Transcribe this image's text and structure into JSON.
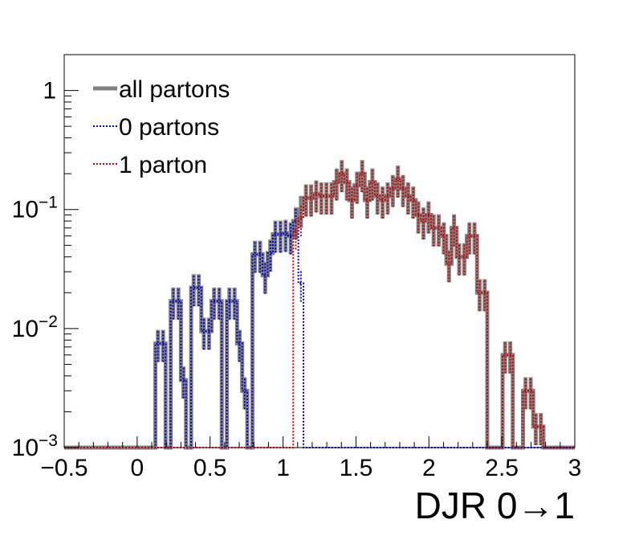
{
  "chart_data": {
    "type": "histogram",
    "xlabel": "DJR 0→1",
    "ylabel": "",
    "title": "",
    "xlim": [
      -0.5,
      3.0
    ],
    "ylim": [
      0.001,
      2.0
    ],
    "yscale": "log",
    "grid": false,
    "legend_position": "top-left",
    "x_ticks": [
      -0.5,
      0,
      0.5,
      1,
      1.5,
      2,
      2.5,
      3
    ],
    "x_tick_labels": [
      "−0.5",
      "0",
      "0.5",
      "1",
      "1.5",
      "2",
      "2.5",
      "3"
    ],
    "y_ticks": [
      {
        "value": 0.001,
        "mantissa": "10",
        "exponent": "−3"
      },
      {
        "value": 0.01,
        "mantissa": "10",
        "exponent": "−2"
      },
      {
        "value": 0.1,
        "mantissa": "10",
        "exponent": "−1"
      },
      {
        "value": 1,
        "mantissa": "1",
        "exponent": ""
      }
    ],
    "bin_edges": [
      0.125,
      0.16,
      0.195,
      0.23,
      0.265,
      0.3,
      0.335,
      0.37,
      0.405,
      0.44,
      0.475,
      0.51,
      0.545,
      0.58,
      0.615,
      0.65,
      0.685,
      0.72,
      0.755,
      0.79,
      0.825,
      0.86,
      0.895,
      0.93,
      0.965,
      1.0,
      1.035,
      1.07,
      1.105,
      1.14,
      1.175,
      1.21,
      1.245,
      1.28,
      1.315,
      1.35,
      1.385,
      1.42,
      1.455,
      1.49,
      1.525,
      1.56,
      1.595,
      1.63,
      1.665,
      1.7,
      1.735,
      1.77,
      1.805,
      1.84,
      1.875,
      1.91,
      1.945,
      1.98,
      2.015,
      2.05,
      2.085,
      2.12,
      2.155,
      2.19,
      2.225,
      2.26,
      2.295,
      2.33,
      2.365,
      2.4,
      2.435,
      2.47,
      2.505,
      2.54,
      2.575,
      2.61,
      2.645,
      2.68,
      2.715,
      2.75,
      2.785,
      2.82,
      2.855,
      2.89
    ],
    "series": [
      {
        "name": "all partons",
        "color": "#808080",
        "style": "solid",
        "values": [
          0.0075,
          0.0075,
          0.001,
          0.017,
          0.017,
          0.0037,
          0.001,
          0.022,
          0.022,
          0.0095,
          0.0095,
          0.017,
          0.017,
          0.001,
          0.017,
          0.017,
          0.0075,
          0.003,
          0.001,
          0.042,
          0.042,
          0.028,
          0.043,
          0.062,
          0.062,
          0.063,
          0.06,
          0.08,
          0.1,
          0.125,
          0.125,
          0.135,
          0.13,
          0.13,
          0.13,
          0.17,
          0.2,
          0.17,
          0.12,
          0.16,
          0.2,
          0.12,
          0.17,
          0.13,
          0.12,
          0.13,
          0.15,
          0.18,
          0.15,
          0.13,
          0.12,
          0.09,
          0.08,
          0.09,
          0.07,
          0.07,
          0.06,
          0.035,
          0.07,
          0.04,
          0.04,
          0.06,
          0.06,
          0.02,
          0.02,
          0.001,
          0.001,
          0.001,
          0.006,
          0.006,
          0.001,
          0.001,
          0.003,
          0.003,
          0.0015,
          0.0015,
          0.001,
          0.001,
          0.001
        ]
      },
      {
        "name": "0 partons",
        "color": "#0000cc",
        "style": "dotted",
        "values": [
          0.0075,
          0.0075,
          0.001,
          0.017,
          0.017,
          0.0037,
          0.001,
          0.022,
          0.022,
          0.0095,
          0.0095,
          0.017,
          0.017,
          0.001,
          0.017,
          0.017,
          0.0075,
          0.003,
          0.001,
          0.042,
          0.042,
          0.028,
          0.043,
          0.062,
          0.062,
          0.063,
          0.06,
          0.08,
          0.024,
          0.001,
          0.001,
          0.001,
          0.001,
          0.001,
          0.001,
          0.001,
          0.001,
          0.001,
          0.001,
          0.001,
          0.001,
          0.001,
          0.001,
          0.001,
          0.001,
          0.001,
          0.001,
          0.001,
          0.001,
          0.001,
          0.001,
          0.001,
          0.001,
          0.001,
          0.001,
          0.001,
          0.001,
          0.001,
          0.001,
          0.001,
          0.001,
          0.001,
          0.001,
          0.001,
          0.001,
          0.001,
          0.001,
          0.001,
          0.001,
          0.001,
          0.001,
          0.001,
          0.001,
          0.001,
          0.001,
          0.001,
          0.001,
          0.001,
          0.001
        ]
      },
      {
        "name": "1 parton",
        "color": "#cc0000",
        "style": "dotted",
        "values": [
          0.001,
          0.001,
          0.001,
          0.001,
          0.001,
          0.001,
          0.001,
          0.001,
          0.001,
          0.001,
          0.001,
          0.001,
          0.001,
          0.001,
          0.001,
          0.001,
          0.001,
          0.001,
          0.001,
          0.001,
          0.001,
          0.001,
          0.001,
          0.001,
          0.001,
          0.001,
          0.001,
          0.066,
          0.085,
          0.125,
          0.125,
          0.135,
          0.13,
          0.13,
          0.13,
          0.17,
          0.2,
          0.17,
          0.12,
          0.16,
          0.2,
          0.12,
          0.17,
          0.13,
          0.12,
          0.13,
          0.15,
          0.18,
          0.15,
          0.13,
          0.12,
          0.09,
          0.08,
          0.09,
          0.07,
          0.07,
          0.06,
          0.035,
          0.07,
          0.04,
          0.04,
          0.06,
          0.06,
          0.02,
          0.02,
          0.001,
          0.001,
          0.001,
          0.006,
          0.006,
          0.001,
          0.001,
          0.003,
          0.003,
          0.0015,
          0.0015,
          0.001,
          0.001,
          0.001
        ]
      }
    ]
  }
}
